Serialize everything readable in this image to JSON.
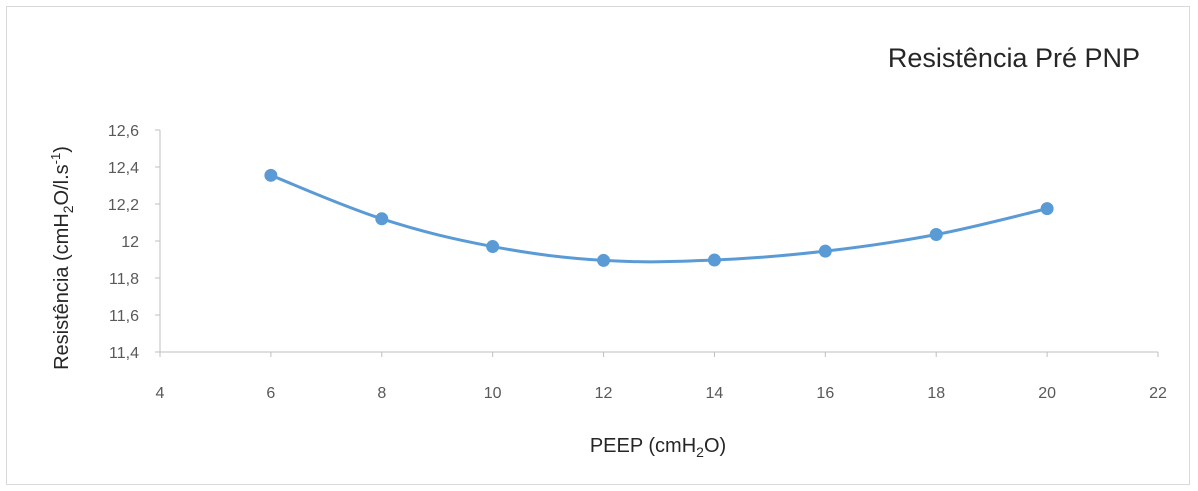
{
  "chart_data": {
    "type": "line",
    "title": "Resistência Pré PNP",
    "xlabel": {
      "main": "PEEP (cmH",
      "sub": "2",
      "tail": "O)"
    },
    "ylabel": {
      "main": "Resistência (cmH",
      "sub": "2",
      "mid": "O/l.s",
      "sup": "-1",
      "tail": ")"
    },
    "xlim": [
      4,
      22
    ],
    "ylim": [
      11.4,
      12.6
    ],
    "x_ticks": [
      4,
      6,
      8,
      10,
      12,
      14,
      16,
      18,
      20,
      22
    ],
    "x_tick_labels": [
      "4",
      "6",
      "8",
      "10",
      "12",
      "14",
      "16",
      "18",
      "20",
      "22"
    ],
    "y_ticks": [
      11.4,
      11.6,
      11.8,
      12.0,
      12.2,
      12.4,
      12.6
    ],
    "y_tick_labels": [
      "11,4",
      "11,6",
      "11,8",
      "12",
      "12,2",
      "12,4",
      "12,6"
    ],
    "grid": false,
    "legend": "none",
    "series": [
      {
        "x": [
          6,
          8,
          10,
          12,
          14,
          16,
          18,
          20
        ],
        "values": [
          12.355,
          12.12,
          11.97,
          11.895,
          11.897,
          11.945,
          12.035,
          12.175
        ],
        "color": "#5b9bd5"
      }
    ],
    "colors": {
      "line": "#5b9bd5",
      "axis": "#bfbfbf",
      "text": "#262626",
      "tick_text": "#595959"
    }
  }
}
